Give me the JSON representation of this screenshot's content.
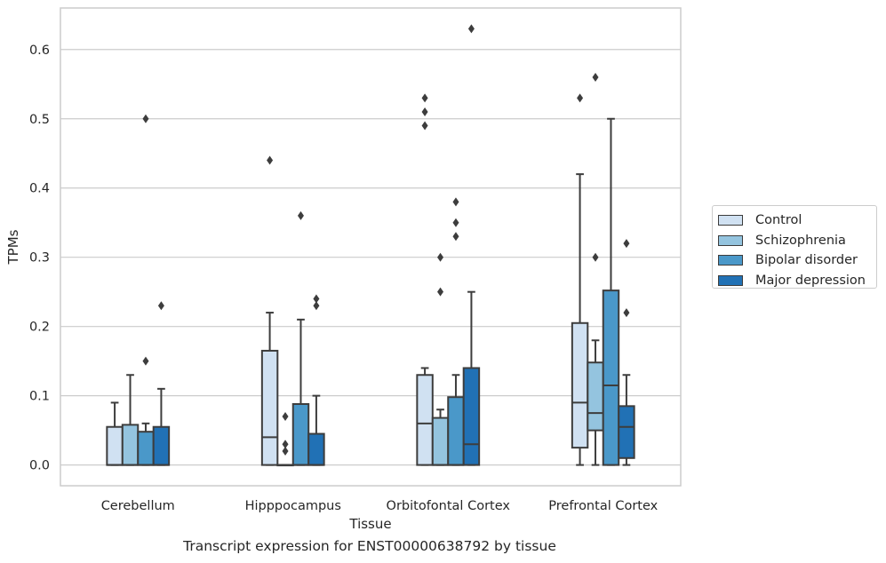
{
  "caption": "Transcript expression for ENST00000638792 by tissue",
  "legend": {
    "items": [
      {
        "label": "Control",
        "color": "#d0e1f2"
      },
      {
        "label": "Schizophrenia",
        "color": "#94c4df"
      },
      {
        "label": "Bipolar disorder",
        "color": "#4a98c9"
      },
      {
        "label": "Major depression",
        "color": "#2171b5"
      }
    ]
  },
  "chart_data": {
    "type": "box",
    "title": "",
    "xlabel": "Tissue",
    "ylabel": "TPMs",
    "ylim": [
      -0.03,
      0.66
    ],
    "yticks": [
      0.0,
      0.1,
      0.2,
      0.3,
      0.4,
      0.5,
      0.6
    ],
    "ytick_labels": [
      "0.0",
      "0.1",
      "0.2",
      "0.3",
      "0.4",
      "0.5",
      "0.6"
    ],
    "grid": "horizontal",
    "legend_position": "right",
    "categories": [
      "Cerebellum",
      "Hipppocampus",
      "Orbitofontal Cortex",
      "Prefrontal Cortex"
    ],
    "series": [
      {
        "name": "Control",
        "color": "#d0e1f2",
        "boxes": [
          {
            "min": 0.0,
            "q1": 0.0,
            "median": 0.0,
            "q3": 0.055,
            "max": 0.09,
            "outliers": []
          },
          {
            "min": 0.0,
            "q1": 0.0,
            "median": 0.04,
            "q3": 0.165,
            "max": 0.22,
            "outliers": [
              0.44
            ]
          },
          {
            "min": 0.0,
            "q1": 0.0,
            "median": 0.06,
            "q3": 0.13,
            "max": 0.14,
            "outliers": [
              0.49,
              0.51,
              0.53
            ]
          },
          {
            "min": 0.0,
            "q1": 0.025,
            "median": 0.09,
            "q3": 0.205,
            "max": 0.42,
            "outliers": [
              0.53
            ]
          }
        ]
      },
      {
        "name": "Schizophrenia",
        "color": "#94c4df",
        "boxes": [
          {
            "min": 0.0,
            "q1": 0.0,
            "median": 0.0,
            "q3": 0.058,
            "max": 0.13,
            "outliers": []
          },
          {
            "min": 0.0,
            "q1": 0.0,
            "median": 0.0,
            "q3": 0.0,
            "max": 0.0,
            "outliers": [
              0.02,
              0.03,
              0.07
            ]
          },
          {
            "min": 0.0,
            "q1": 0.0,
            "median": 0.0,
            "q3": 0.068,
            "max": 0.08,
            "outliers": [
              0.25,
              0.3
            ]
          },
          {
            "min": 0.0,
            "q1": 0.05,
            "median": 0.075,
            "q3": 0.148,
            "max": 0.18,
            "outliers": [
              0.3,
              0.56
            ]
          }
        ]
      },
      {
        "name": "Bipolar disorder",
        "color": "#4a98c9",
        "boxes": [
          {
            "min": 0.0,
            "q1": 0.0,
            "median": 0.0,
            "q3": 0.048,
            "max": 0.06,
            "outliers": [
              0.15,
              0.5
            ]
          },
          {
            "min": 0.0,
            "q1": 0.0,
            "median": 0.0,
            "q3": 0.088,
            "max": 0.21,
            "outliers": [
              0.36
            ]
          },
          {
            "min": 0.0,
            "q1": 0.0,
            "median": 0.0,
            "q3": 0.098,
            "max": 0.13,
            "outliers": [
              0.33,
              0.35,
              0.38
            ]
          },
          {
            "min": 0.0,
            "q1": 0.0,
            "median": 0.115,
            "q3": 0.252,
            "max": 0.5,
            "outliers": []
          }
        ]
      },
      {
        "name": "Major depression",
        "color": "#2171b5",
        "boxes": [
          {
            "min": 0.0,
            "q1": 0.0,
            "median": 0.0,
            "q3": 0.055,
            "max": 0.11,
            "outliers": [
              0.23
            ]
          },
          {
            "min": 0.0,
            "q1": 0.0,
            "median": 0.0,
            "q3": 0.045,
            "max": 0.1,
            "outliers": [
              0.23,
              0.24
            ]
          },
          {
            "min": 0.0,
            "q1": 0.0,
            "median": 0.03,
            "q3": 0.14,
            "max": 0.25,
            "outliers": [
              0.63
            ]
          },
          {
            "min": 0.0,
            "q1": 0.01,
            "median": 0.055,
            "q3": 0.085,
            "max": 0.13,
            "outliers": [
              0.22,
              0.32
            ]
          }
        ]
      }
    ]
  }
}
